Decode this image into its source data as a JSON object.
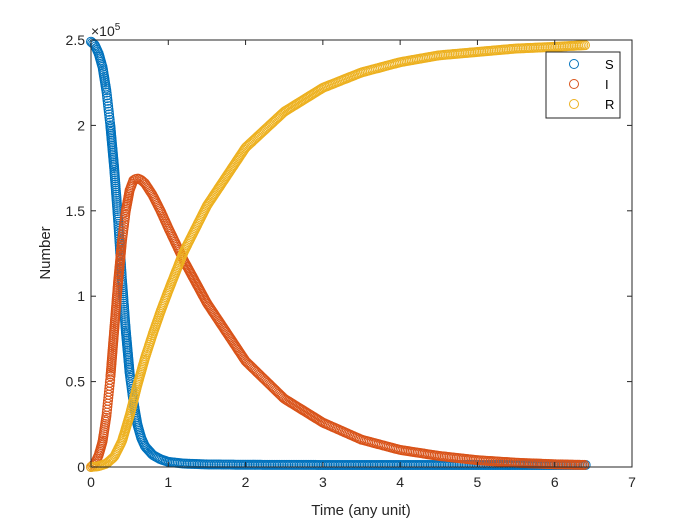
{
  "chart_data": {
    "type": "scatter",
    "title": "",
    "xlabel": "Time (any unit)",
    "ylabel": "Number",
    "y_multiplier_label": "×10",
    "y_multiplier_exponent": "5",
    "xlim": [
      0,
      7
    ],
    "ylim": [
      0,
      2.5
    ],
    "y_scale": 100000,
    "xticks": [
      0,
      1,
      2,
      3,
      4,
      5,
      6,
      7
    ],
    "xtick_labels": [
      "0",
      "1",
      "2",
      "3",
      "4",
      "5",
      "6",
      "7"
    ],
    "yticks": [
      0,
      0.5,
      1,
      1.5,
      2,
      2.5
    ],
    "ytick_labels": [
      "0",
      "0.5",
      "1",
      "1.5",
      "2",
      "2.5"
    ],
    "grid": false,
    "legend_position": "top-right",
    "marker": "open-circle",
    "series": [
      {
        "name": "S",
        "color": "#0072BD",
        "x": [
          0,
          0.05,
          0.1,
          0.15,
          0.2,
          0.25,
          0.3,
          0.35,
          0.4,
          0.45,
          0.5,
          0.55,
          0.6,
          0.65,
          0.7,
          0.8,
          0.9,
          1.0,
          1.2,
          1.5,
          2.0,
          3.0,
          4.0,
          5.0,
          6.4
        ],
        "y": [
          2.49,
          2.47,
          2.42,
          2.34,
          2.2,
          2.0,
          1.75,
          1.45,
          1.1,
          0.8,
          0.55,
          0.38,
          0.25,
          0.17,
          0.12,
          0.07,
          0.045,
          0.03,
          0.02,
          0.015,
          0.013,
          0.012,
          0.012,
          0.012,
          0.012
        ]
      },
      {
        "name": "I",
        "color": "#D95319",
        "x": [
          0,
          0.05,
          0.1,
          0.15,
          0.2,
          0.25,
          0.3,
          0.35,
          0.4,
          0.45,
          0.5,
          0.55,
          0.6,
          0.65,
          0.7,
          0.8,
          0.9,
          1.0,
          1.2,
          1.5,
          2.0,
          2.5,
          3.0,
          3.5,
          4.0,
          4.5,
          5.0,
          5.5,
          6.0,
          6.4
        ],
        "y": [
          0.0,
          0.02,
          0.07,
          0.15,
          0.3,
          0.52,
          0.8,
          1.08,
          1.32,
          1.5,
          1.62,
          1.68,
          1.69,
          1.68,
          1.66,
          1.59,
          1.5,
          1.4,
          1.21,
          0.96,
          0.62,
          0.4,
          0.26,
          0.16,
          0.1,
          0.065,
          0.04,
          0.025,
          0.016,
          0.012
        ]
      },
      {
        "name": "R",
        "color": "#EDB120",
        "x": [
          0,
          0.1,
          0.2,
          0.3,
          0.4,
          0.5,
          0.6,
          0.7,
          0.8,
          0.9,
          1.0,
          1.2,
          1.5,
          2.0,
          2.5,
          3.0,
          3.5,
          4.0,
          4.5,
          5.0,
          5.5,
          6.0,
          6.4
        ],
        "y": [
          0.0,
          0.005,
          0.02,
          0.06,
          0.15,
          0.3,
          0.48,
          0.64,
          0.78,
          0.91,
          1.03,
          1.26,
          1.53,
          1.87,
          2.08,
          2.22,
          2.31,
          2.37,
          2.41,
          2.43,
          2.45,
          2.46,
          2.47
        ]
      }
    ]
  }
}
